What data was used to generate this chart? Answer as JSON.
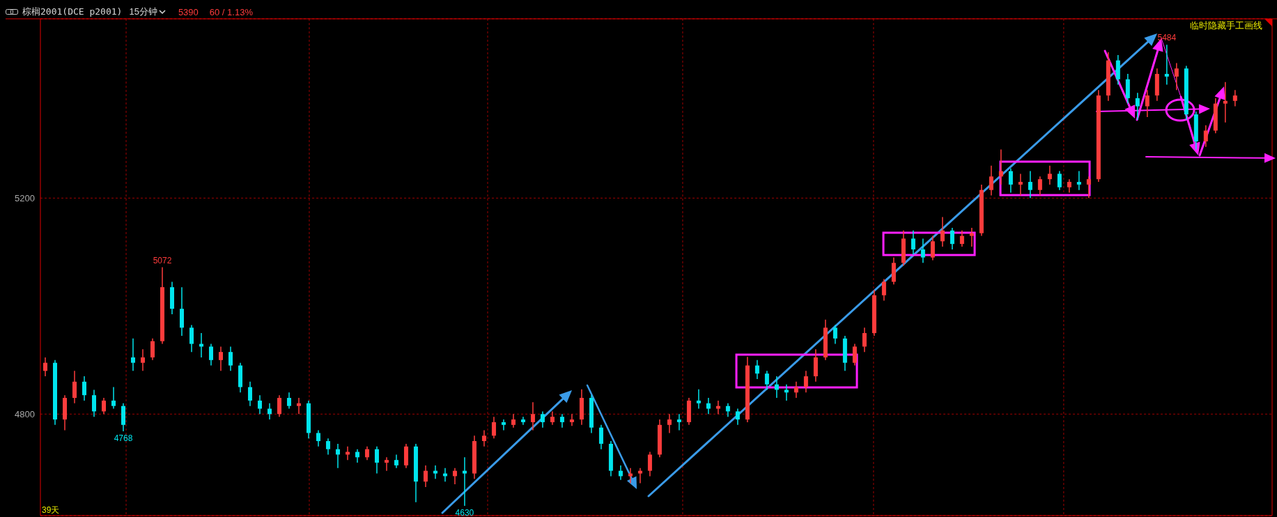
{
  "chart_data": {
    "type": "candlestick",
    "title": "棕榈2001(DCE p2001)",
    "subtitle": "15分钟",
    "annotations": [
      {
        "text": "5072",
        "y": 5072
      },
      {
        "text": "4768",
        "y": 4768
      },
      {
        "text": "4630",
        "y": 4630
      },
      {
        "text": "5484",
        "y": 5484
      },
      "5390",
      "60 / 1.13%",
      "临时隐藏手工画线",
      "39天"
    ],
    "categories": [
      null,
      null,
      null,
      null,
      null,
      null,
      null,
      null,
      null,
      null,
      null,
      null,
      null,
      null,
      null,
      null,
      null,
      null,
      null,
      null,
      null,
      null,
      null,
      null,
      null,
      null,
      null,
      null,
      null,
      null,
      null,
      null,
      null,
      null,
      null,
      null,
      null,
      null,
      null,
      null,
      null,
      null,
      null,
      null,
      null,
      null,
      null,
      null,
      null,
      null,
      null,
      null,
      null,
      null,
      null,
      null,
      null,
      null,
      null,
      null,
      null,
      null,
      null,
      null,
      null,
      null,
      null,
      null,
      null,
      null,
      null,
      null,
      null,
      null,
      null,
      null,
      null,
      null,
      null,
      null,
      null,
      null,
      null,
      null,
      null,
      null,
      null,
      null,
      null,
      null,
      null,
      null,
      null,
      null,
      null,
      null,
      null,
      null,
      null,
      null,
      null,
      null,
      null,
      null,
      null,
      null,
      null,
      null,
      null,
      null,
      null,
      null,
      null,
      null,
      null,
      null,
      null,
      null,
      null,
      null,
      null,
      null,
      null
    ],
    "ohlc": [
      [
        4880,
        4905,
        4870,
        4895
      ],
      [
        4895,
        4900,
        4780,
        4790
      ],
      [
        4790,
        4835,
        4770,
        4830
      ],
      [
        4830,
        4880,
        4820,
        4860
      ],
      [
        4860,
        4870,
        4825,
        4835
      ],
      [
        4835,
        4845,
        4795,
        4805
      ],
      [
        4805,
        4830,
        4800,
        4825
      ],
      [
        4825,
        4850,
        4810,
        4815
      ],
      [
        4815,
        4820,
        4768,
        4780
      ],
      [
        4905,
        4940,
        4880,
        4895
      ],
      [
        4895,
        4920,
        4880,
        4905
      ],
      [
        4905,
        4940,
        4900,
        4935
      ],
      [
        4935,
        5072,
        4930,
        5035
      ],
      [
        5035,
        5045,
        4985,
        4995
      ],
      [
        4995,
        5035,
        4945,
        4960
      ],
      [
        4960,
        4965,
        4915,
        4930
      ],
      [
        4930,
        4950,
        4905,
        4925
      ],
      [
        4925,
        4930,
        4890,
        4900
      ],
      [
        4900,
        4925,
        4880,
        4915
      ],
      [
        4915,
        4925,
        4880,
        4890
      ],
      [
        4890,
        4895,
        4840,
        4850
      ],
      [
        4850,
        4860,
        4815,
        4825
      ],
      [
        4825,
        4835,
        4800,
        4810
      ],
      [
        4810,
        4820,
        4790,
        4800
      ],
      [
        4800,
        4835,
        4795,
        4830
      ],
      [
        4830,
        4840,
        4810,
        4815
      ],
      [
        4815,
        4830,
        4800,
        4820
      ],
      [
        4820,
        4825,
        4755,
        4765
      ],
      [
        4765,
        4770,
        4740,
        4750
      ],
      [
        4750,
        4755,
        4725,
        4735
      ],
      [
        4735,
        4745,
        4700,
        4725
      ],
      [
        4725,
        4740,
        4715,
        4730
      ],
      [
        4730,
        4735,
        4710,
        4720
      ],
      [
        4720,
        4740,
        4715,
        4735
      ],
      [
        4735,
        4740,
        4690,
        4710
      ],
      [
        4710,
        4720,
        4695,
        4715
      ],
      [
        4715,
        4725,
        4700,
        4705
      ],
      [
        4705,
        4745,
        4700,
        4740
      ],
      [
        4740,
        4745,
        4637,
        4675
      ],
      [
        4675,
        4705,
        4665,
        4695
      ],
      [
        4695,
        4705,
        4680,
        4690
      ],
      [
        4690,
        4700,
        4675,
        4685
      ],
      [
        4685,
        4700,
        4670,
        4695
      ],
      [
        4695,
        4720,
        4630,
        4690
      ],
      [
        4690,
        4760,
        4680,
        4750
      ],
      [
        4750,
        4770,
        4740,
        4760
      ],
      [
        4760,
        4795,
        4755,
        4785
      ],
      [
        4785,
        4790,
        4770,
        4780
      ],
      [
        4780,
        4800,
        4775,
        4790
      ],
      [
        4790,
        4795,
        4780,
        4785
      ],
      [
        4785,
        4822,
        4770,
        4800
      ],
      [
        4800,
        4805,
        4775,
        4785
      ],
      [
        4785,
        4805,
        4780,
        4795
      ],
      [
        4795,
        4800,
        4775,
        4785
      ],
      [
        4785,
        4800,
        4778,
        4790
      ],
      [
        4790,
        4846,
        4780,
        4830
      ],
      [
        4830,
        4835,
        4765,
        4775
      ],
      [
        4775,
        4780,
        4735,
        4745
      ],
      [
        4745,
        4750,
        4685,
        4695
      ],
      [
        4695,
        4705,
        4678,
        4685
      ],
      [
        4685,
        4700,
        4672,
        4690
      ],
      [
        4690,
        4700,
        4672,
        4695
      ],
      [
        4695,
        4730,
        4685,
        4725
      ],
      [
        4725,
        4790,
        4720,
        4780
      ],
      [
        4780,
        4800,
        4765,
        4790
      ],
      [
        4790,
        4800,
        4770,
        4785
      ],
      [
        4785,
        4830,
        4780,
        4825
      ],
      [
        4825,
        4846,
        4810,
        4820
      ],
      [
        4820,
        4830,
        4800,
        4810
      ],
      [
        4810,
        4825,
        4800,
        4815
      ],
      [
        4815,
        4820,
        4795,
        4805
      ],
      [
        4805,
        4810,
        4780,
        4790
      ],
      [
        4790,
        4906,
        4785,
        4890
      ],
      [
        4890,
        4900,
        4865,
        4875
      ],
      [
        4875,
        4880,
        4845,
        4855
      ],
      [
        4855,
        4870,
        4830,
        4845
      ],
      [
        4845,
        4855,
        4825,
        4840
      ],
      [
        4840,
        4860,
        4830,
        4850
      ],
      [
        4850,
        4880,
        4840,
        4870
      ],
      [
        4870,
        4920,
        4860,
        4905
      ],
      [
        4905,
        4975,
        4900,
        4960
      ],
      [
        4960,
        4965,
        4930,
        4940
      ],
      [
        4940,
        4945,
        4880,
        4895
      ],
      [
        4895,
        4930,
        4890,
        4925
      ],
      [
        4925,
        4960,
        4915,
        4950
      ],
      [
        4950,
        5030,
        4945,
        5020
      ],
      [
        5020,
        5050,
        5010,
        5045
      ],
      [
        5045,
        5090,
        5040,
        5080
      ],
      [
        5080,
        5140,
        5075,
        5125
      ],
      [
        5125,
        5140,
        5095,
        5105
      ],
      [
        5105,
        5125,
        5080,
        5090
      ],
      [
        5090,
        5130,
        5085,
        5120
      ],
      [
        5120,
        5165,
        5110,
        5140
      ],
      [
        5140,
        5145,
        5105,
        5115
      ],
      [
        5115,
        5140,
        5110,
        5130
      ],
      [
        5130,
        5145,
        5110,
        5135
      ],
      [
        5135,
        5225,
        5130,
        5215
      ],
      [
        5215,
        5260,
        5205,
        5240
      ],
      [
        5240,
        5290,
        5225,
        5250
      ],
      [
        5250,
        5255,
        5210,
        5225
      ],
      [
        5225,
        5245,
        5205,
        5230
      ],
      [
        5230,
        5250,
        5200,
        5215
      ],
      [
        5215,
        5240,
        5205,
        5235
      ],
      [
        5235,
        5260,
        5225,
        5245
      ],
      [
        5245,
        5250,
        5215,
        5220
      ],
      [
        5220,
        5235,
        5210,
        5230
      ],
      [
        5230,
        5250,
        5215,
        5225
      ],
      [
        5225,
        5240,
        5200,
        5235
      ],
      [
        5235,
        5400,
        5230,
        5390
      ],
      [
        5390,
        5470,
        5380,
        5455
      ],
      [
        5455,
        5465,
        5410,
        5420
      ],
      [
        5420,
        5430,
        5375,
        5385
      ],
      [
        5385,
        5395,
        5345,
        5370
      ],
      [
        5370,
        5400,
        5350,
        5390
      ],
      [
        5390,
        5440,
        5380,
        5430
      ],
      [
        5430,
        5484,
        5410,
        5425
      ],
      [
        5425,
        5450,
        5400,
        5440
      ],
      [
        5440,
        5445,
        5345,
        5355
      ],
      [
        5355,
        5360,
        5290,
        5305
      ],
      [
        5305,
        5335,
        5295,
        5325
      ],
      [
        5325,
        5385,
        5320,
        5375
      ],
      [
        5375,
        5415,
        5340,
        5380
      ],
      [
        5380,
        5400,
        5370,
        5390
      ]
    ],
    "colors": [
      "#ff3c3c",
      "#00e5ee",
      "#ff3c3c",
      "#ff3c3c",
      "#00e5ee",
      "#00e5ee",
      "#ff3c3c",
      "#00e5ee",
      "#00e5ee",
      "#00e5ee",
      "#ff3c3c",
      "#ff3c3c",
      "#ff3c3c",
      "#00e5ee",
      "#00e5ee",
      "#00e5ee",
      "#00e5ee",
      "#00e5ee",
      "#ff3c3c",
      "#00e5ee",
      "#00e5ee",
      "#00e5ee",
      "#00e5ee",
      "#00e5ee",
      "#ff3c3c",
      "#00e5ee",
      "#ff3c3c",
      "#00e5ee",
      "#00e5ee",
      "#00e5ee",
      "#00e5ee",
      "#ff3c3c",
      "#00e5ee",
      "#ff3c3c",
      "#00e5ee",
      "#ff3c3c",
      "#00e5ee",
      "#ff3c3c",
      "#00e5ee",
      "#ff3c3c",
      "#00e5ee",
      "#00e5ee",
      "#ff3c3c",
      "#00e5ee",
      "#ff3c3c",
      "#ff3c3c",
      "#ff3c3c",
      "#00e5ee",
      "#ff3c3c",
      "#00e5ee",
      "#ff3c3c",
      "#00e5ee",
      "#ff3c3c",
      "#00e5ee",
      "#ff3c3c",
      "#ff3c3c",
      "#00e5ee",
      "#00e5ee",
      "#00e5ee",
      "#00e5ee",
      "#ff3c3c",
      "#ff3c3c",
      "#ff3c3c",
      "#ff3c3c",
      "#ff3c3c",
      "#00e5ee",
      "#ff3c3c",
      "#00e5ee",
      "#00e5ee",
      "#ff3c3c",
      "#00e5ee",
      "#00e5ee",
      "#ff3c3c",
      "#00e5ee",
      "#00e5ee",
      "#00e5ee",
      "#00e5ee",
      "#ff3c3c",
      "#ff3c3c",
      "#ff3c3c",
      "#ff3c3c",
      "#00e5ee",
      "#00e5ee",
      "#ff3c3c",
      "#ff3c3c",
      "#ff3c3c",
      "#ff3c3c",
      "#ff3c3c",
      "#ff3c3c",
      "#00e5ee",
      "#00e5ee",
      "#ff3c3c",
      "#ff3c3c",
      "#00e5ee",
      "#ff3c3c",
      "#ff3c3c",
      "#ff3c3c",
      "#ff3c3c",
      "#ff3c3c",
      "#00e5ee",
      "#ff3c3c",
      "#00e5ee",
      "#ff3c3c",
      "#ff3c3c",
      "#00e5ee",
      "#ff3c3c",
      "#00e5ee",
      "#ff3c3c",
      "#ff3c3c",
      "#ff3c3c",
      "#00e5ee",
      "#00e5ee",
      "#00e5ee",
      "#ff3c3c",
      "#ff3c3c",
      "#00e5ee",
      "#ff3c3c",
      "#00e5ee",
      "#00e5ee",
      "#ff3c3c",
      "#ff3c3c",
      "#ff3c3c",
      "#ff3c3c"
    ],
    "ylim": [
      4612,
      5532
    ],
    "yticks": [
      4800,
      5200
    ],
    "grid": "y",
    "tick_labels": "y",
    "legend": false
  }
}
